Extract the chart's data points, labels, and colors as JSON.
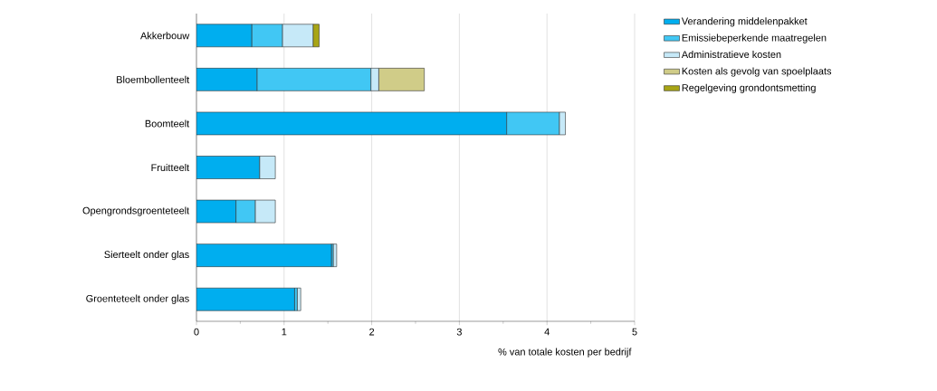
{
  "chart_data": {
    "type": "bar",
    "orientation": "horizontal",
    "stacked": true,
    "xlabel": "% van totale kosten per bedrijf",
    "categories": [
      "Akkerbouw",
      "Bloembollenteelt",
      "Boomteelt",
      "Fruitteelt",
      "Opengrondsgroenteteelt",
      "Sierteelt onder glas",
      "Groenteteelt onder glas"
    ],
    "series": [
      {
        "name": "Verandering middelenpakket",
        "color": "#00aeef",
        "values": [
          0.63,
          0.69,
          3.54,
          0.72,
          0.45,
          1.54,
          1.12
        ]
      },
      {
        "name": "Emissiebeperkende maatregelen",
        "color": "#41c7f4",
        "values": [
          0.35,
          1.3,
          0.6,
          0,
          0.22,
          0.02,
          0.03
        ]
      },
      {
        "name": "Administratieve kosten",
        "color": "#c6e9f8",
        "values": [
          0.35,
          0.09,
          0.07,
          0.18,
          0.23,
          0.04,
          0.04
        ]
      },
      {
        "name": "Kosten als gevolg van spoelplaats",
        "color": "#d0cc88",
        "values": [
          0,
          0.52,
          0,
          0,
          0,
          0,
          0
        ]
      },
      {
        "name": "Regelgeving grondontsmetting",
        "color": "#a8a515",
        "values": [
          0.07,
          0,
          0,
          0,
          0,
          0,
          0
        ]
      }
    ],
    "xlim": [
      0,
      5
    ],
    "xticks": [
      0,
      1,
      2,
      3,
      4,
      5
    ],
    "grid": "x",
    "legend": "top right"
  }
}
